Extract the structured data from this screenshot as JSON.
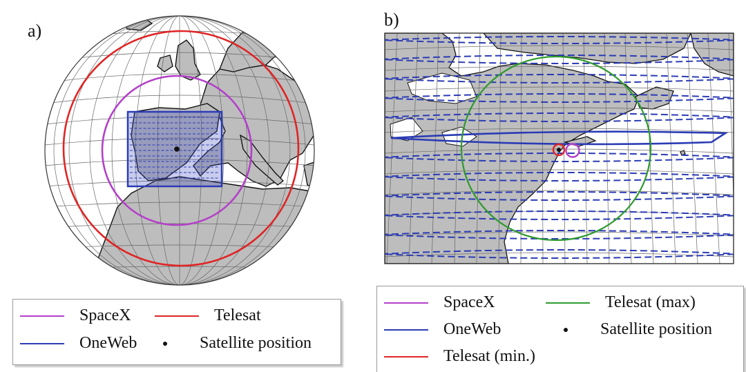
{
  "panels": {
    "a": {
      "label": "a)",
      "legend": [
        {
          "label": "SpaceX",
          "kind": "line",
          "color": "#b340c8"
        },
        {
          "label": "Telesat",
          "kind": "line",
          "color": "#e02424"
        },
        {
          "label": "OneWeb",
          "kind": "line",
          "color": "#2b3bb5"
        },
        {
          "label": "Satellite position",
          "kind": "dot",
          "color": "#111111"
        }
      ]
    },
    "b": {
      "label": "b)",
      "legend": [
        {
          "label": "SpaceX",
          "kind": "line",
          "color": "#b340c8"
        },
        {
          "label": "Telesat (max)",
          "kind": "line",
          "color": "#2e9a2e"
        },
        {
          "label": "OneWeb",
          "kind": "line",
          "color": "#2b3bb5"
        },
        {
          "label": "Satellite position",
          "kind": "dot",
          "color": "#111111"
        },
        {
          "label": "Telesat (min.)",
          "kind": "line",
          "color": "#e02424"
        }
      ]
    }
  },
  "colors": {
    "land": "#bdbdbd",
    "ocean": "#ffffff",
    "grid": "#666666",
    "spacex": "#b340c8",
    "telesat": "#e02424",
    "telesat_max": "#2e9a2e",
    "oneweb": "#2b3bb5"
  }
}
